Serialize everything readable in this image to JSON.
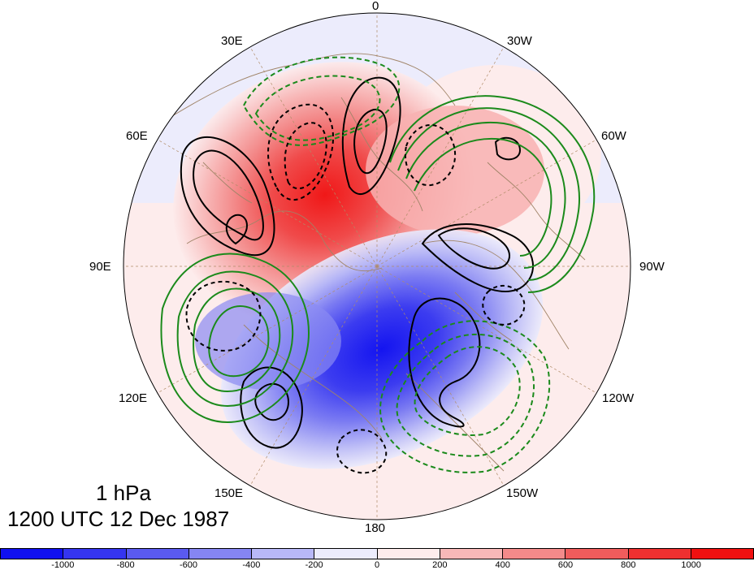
{
  "titles": {
    "level": "1 hPa",
    "time": "1200 UTC 12 Dec 1987"
  },
  "longitude_labels": {
    "top": "0",
    "lon_30e": "30E",
    "lon_30w": "30W",
    "lon_60e": "60E",
    "lon_60w": "60W",
    "lon_90e": "90E",
    "lon_90w": "90W",
    "lon_120e": "120E",
    "lon_120w": "120W",
    "lon_150e": "150E",
    "lon_150w": "150W",
    "bottom": "180"
  },
  "colorbar": {
    "ticks": [
      "-1000",
      "-800",
      "-600",
      "-400",
      "-200",
      "0",
      "200",
      "400",
      "600",
      "800",
      "1000"
    ],
    "colors": [
      "#1010f0",
      "#3535f0",
      "#5a5af0",
      "#8585f2",
      "#b8b8f7",
      "#ececfc",
      "#fdecec",
      "#f8b8b8",
      "#f38a8a",
      "#f05c5c",
      "#ee3030",
      "#f01010"
    ]
  },
  "colors": {
    "positive_contour": "#000000",
    "negative_contour": "#1b8a1b",
    "map_lines": "#a08468",
    "grid_lines": "#b08c68"
  }
}
